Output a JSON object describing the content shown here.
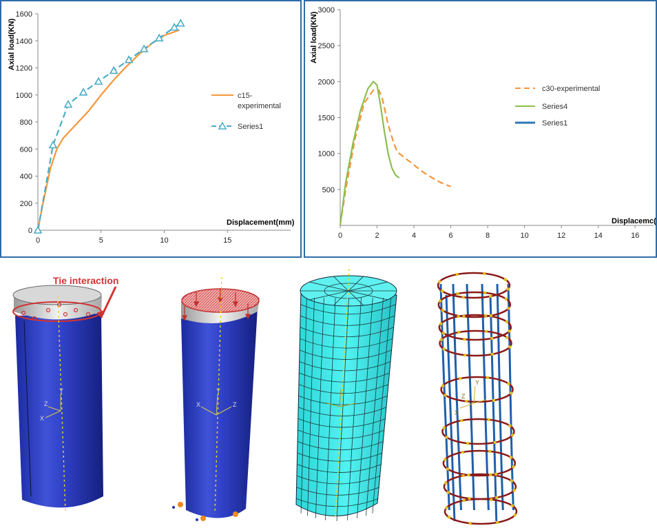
{
  "chart_data": [
    {
      "type": "line",
      "xlabel": "Displacement(mm)",
      "ylabel": "Axial load(KN)",
      "xlim": [
        0,
        20
      ],
      "ylim": [
        0,
        1600
      ],
      "xticks": [
        "0",
        "5",
        "10",
        "15"
      ],
      "yticks": [
        "0",
        "200",
        "400",
        "600",
        "800",
        "1000",
        "1200",
        "1400",
        "1600"
      ],
      "legend_position": "right",
      "series": [
        {
          "name": "c15-experimental",
          "color": "#f7953a",
          "style": "solid",
          "x": [
            0,
            0.3,
            0.7,
            1.0,
            1.5,
            2.0,
            2.5,
            3.0,
            3.5,
            4.0,
            4.5,
            5.0,
            6.0,
            7.0,
            8.0,
            9.0,
            10.0,
            11.2
          ],
          "y": [
            0,
            150,
            330,
            460,
            600,
            680,
            730,
            780,
            830,
            880,
            940,
            1000,
            1110,
            1210,
            1300,
            1380,
            1440,
            1480
          ]
        },
        {
          "name": "Series1",
          "color": "#4bacc6",
          "style": "dashed",
          "marker": "triangle",
          "x": [
            0,
            1.2,
            2.4,
            3.6,
            4.8,
            6.0,
            7.2,
            8.4,
            9.6,
            10.8,
            11.3
          ],
          "y": [
            0,
            630,
            930,
            1020,
            1100,
            1180,
            1260,
            1340,
            1420,
            1500,
            1530
          ]
        }
      ]
    },
    {
      "type": "line",
      "xlabel": "Displacemc(",
      "ylabel": "Axial load(KN)",
      "xlim": [
        0,
        17
      ],
      "ylim": [
        0,
        3000
      ],
      "xticks": [
        "0",
        "2",
        "4",
        "6",
        "8",
        "10",
        "12",
        "14",
        "16"
      ],
      "yticks": [
        "500",
        "1000",
        "1500",
        "2000",
        "2500",
        "3000"
      ],
      "legend_position": "right",
      "series": [
        {
          "name": "c30-experimental",
          "color": "#f7953a",
          "style": "dashed",
          "x": [
            0,
            0.3,
            0.8,
            1.3,
            1.8,
            2.1,
            2.3,
            2.6,
            2.9,
            3.1,
            3.4,
            4.0,
            4.5,
            5.0,
            5.5,
            6.0
          ],
          "y": [
            0,
            500,
            1200,
            1700,
            1880,
            1880,
            1750,
            1400,
            1150,
            1020,
            960,
            840,
            740,
            660,
            590,
            540
          ]
        },
        {
          "name": "Series4",
          "color": "#8cbf4f",
          "style": "solid",
          "x": [
            0,
            0.3,
            0.7,
            1.1,
            1.5,
            1.8,
            2.0,
            2.2,
            2.4,
            2.6,
            2.8,
            3.0,
            3.2
          ],
          "y": [
            0,
            600,
            1150,
            1600,
            1900,
            2000,
            1950,
            1650,
            1300,
            1000,
            800,
            700,
            660
          ]
        },
        {
          "name": "Series1",
          "color": "#2e75b6",
          "style": "solid",
          "x": [],
          "y": []
        }
      ]
    }
  ],
  "models": {
    "annotation": "Tie interaction",
    "axis_labels": {
      "x": "X",
      "y": "Y",
      "z": "Z"
    },
    "colors": {
      "concrete": "#2c3dbf",
      "mesh": "#3ce8e8",
      "stirrup": "#8b1a1a",
      "longitudinal_bar": "#1f5fa8",
      "annotation": "#d23333",
      "centerline": "#e8d51a"
    }
  }
}
